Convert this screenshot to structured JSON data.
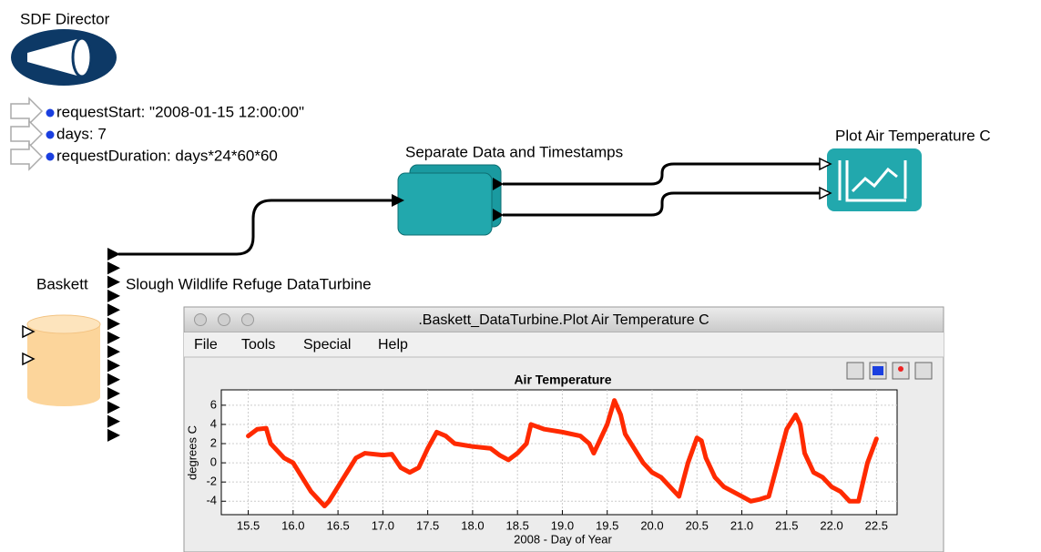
{
  "director": {
    "label": "SDF Director"
  },
  "parameters": [
    "requestStart: \"2008-01-15 12:00:00\"",
    "days: 7",
    "requestDuration: days*24*60*60"
  ],
  "actors": {
    "separate": "Separate Data and Timestamps",
    "plot": "Plot Air Temperature C",
    "source_left": "Baskett",
    "source_right": "Slough Wildlife Refuge DataTurbine"
  },
  "window": {
    "title": ".Baskett_DataTurbine.Plot Air Temperature C",
    "menu": [
      "File",
      "Tools",
      "Special",
      "Help"
    ]
  },
  "chart_data": {
    "type": "line",
    "title": "Air Temperature",
    "x_label": "2008 - Day of Year",
    "y_label": "degrees C",
    "xlim": [
      15.2,
      22.73
    ],
    "ylim": [
      -5.4,
      7.6
    ],
    "xticks": [
      15.5,
      {
        "value": 16,
        "label": "16.0"
      },
      16.5,
      {
        "value": 17,
        "label": "17.0"
      },
      17.5,
      {
        "value": 18,
        "label": "18.0"
      },
      18.5,
      {
        "value": 19,
        "label": "19.0"
      },
      19.5,
      {
        "value": 20,
        "label": "20.0"
      },
      20.5,
      {
        "value": 21,
        "label": "21.0"
      },
      21.5,
      {
        "value": 22,
        "label": "22.0"
      },
      22.5
    ],
    "yticks": [
      -4,
      -2,
      0,
      2,
      4,
      6
    ],
    "grid": true,
    "series": [
      {
        "name": "Air Temperature",
        "color": "#ff2a00",
        "x": [
          15.5,
          15.6,
          15.7,
          15.75,
          15.8,
          15.9,
          16.0,
          16.1,
          16.2,
          16.3,
          16.35,
          16.4,
          16.5,
          16.6,
          16.7,
          16.8,
          17.0,
          17.1,
          17.2,
          17.3,
          17.4,
          17.5,
          17.6,
          17.7,
          17.8,
          18.0,
          18.2,
          18.3,
          18.4,
          18.5,
          18.6,
          18.65,
          18.8,
          19.0,
          19.2,
          19.3,
          19.35,
          19.4,
          19.5,
          19.58,
          19.65,
          19.7,
          19.8,
          19.9,
          20.0,
          20.1,
          20.2,
          20.3,
          20.4,
          20.5,
          20.55,
          20.6,
          20.7,
          20.8,
          20.9,
          21.0,
          21.1,
          21.2,
          21.3,
          21.4,
          21.5,
          21.6,
          21.65,
          21.7,
          21.8,
          21.9,
          22.0,
          22.1,
          22.2,
          22.3,
          22.4,
          22.5
        ],
        "values": [
          2.8,
          3.5,
          3.6,
          2.0,
          1.5,
          0.5,
          0,
          -1.5,
          -3,
          -4,
          -4.5,
          -4,
          -2.5,
          -1,
          0.5,
          1,
          0.8,
          0.9,
          -0.5,
          -1,
          -0.5,
          1.5,
          3.2,
          2.8,
          2,
          1.7,
          1.5,
          0.8,
          0.3,
          1,
          2,
          4,
          3.5,
          3.2,
          2.8,
          2,
          1,
          2,
          4,
          6.5,
          5,
          3,
          1.5,
          0,
          -1,
          -1.5,
          -2.5,
          -3.5,
          0,
          2.6,
          2.3,
          0.5,
          -1.5,
          -2.5,
          -3,
          -3.5,
          -4,
          -3.8,
          -3.5,
          0,
          3.5,
          5,
          4,
          1,
          -1,
          -1.5,
          -2.5,
          -3,
          -4,
          -4,
          0,
          2.5
        ]
      }
    ]
  }
}
